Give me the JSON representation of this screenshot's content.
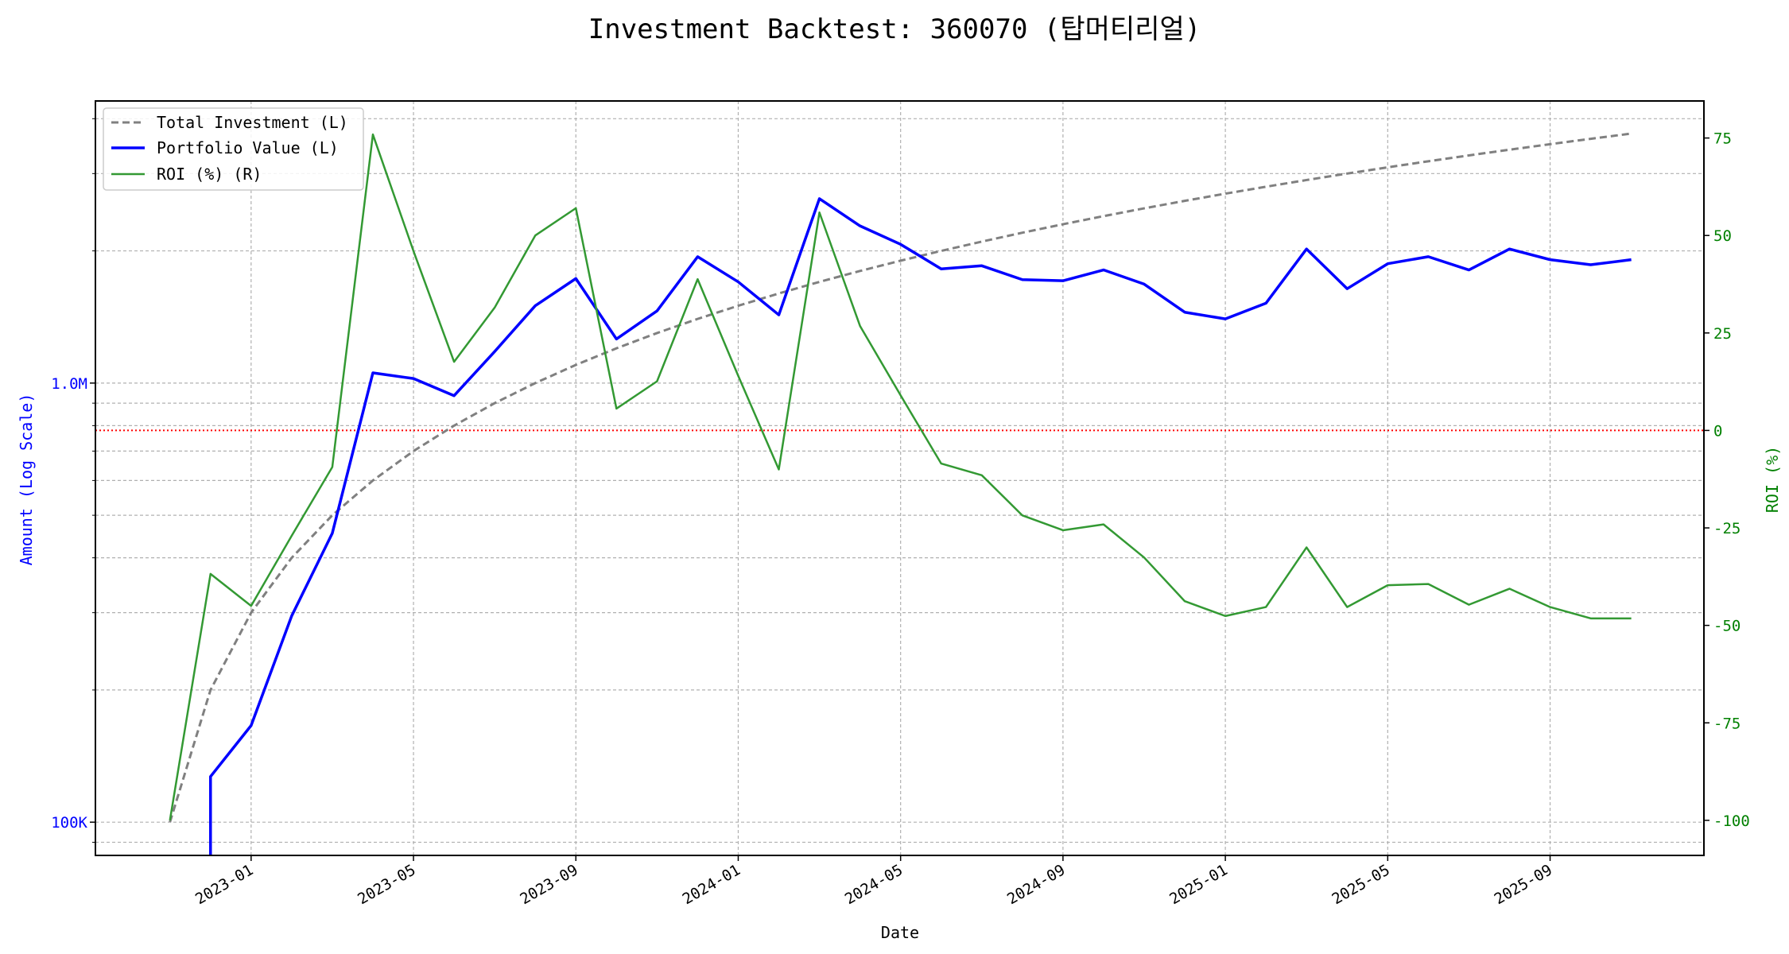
{
  "chart_data": {
    "type": "line",
    "title": "Investment Backtest: 360070 (탑머티리얼)",
    "xlabel": "Date",
    "ylabel_left": "Amount (Log Scale)",
    "ylabel_right": "ROI (%)",
    "left_scale": "log",
    "ylim_left": [
      84000,
      4390000
    ],
    "ylim_right": [
      -109,
      84.5
    ],
    "xlim": [
      "2022-09-06",
      "2025-12-25"
    ],
    "grid": true,
    "legend_position": "top-left",
    "x_ticks": [
      "2023-01",
      "2023-05",
      "2023-09",
      "2024-01",
      "2024-05",
      "2024-09",
      "2025-01",
      "2025-05",
      "2025-09"
    ],
    "y_ticks_left": [
      {
        "value": 100000,
        "label": "100K"
      },
      {
        "value": 1000000,
        "label": "1.0M"
      }
    ],
    "y_minor_left": [
      90000,
      200000,
      300000,
      400000,
      500000,
      600000,
      700000,
      800000,
      900000,
      2000000,
      3000000,
      4000000
    ],
    "y_ticks_right": [
      75,
      50,
      25,
      0,
      -25,
      -50,
      -75,
      -100
    ],
    "reference_line": {
      "axis": "right",
      "value": 0,
      "color": "#ff0000"
    },
    "x": [
      "2022-11",
      "2022-12",
      "2023-01",
      "2023-02",
      "2023-03",
      "2023-04",
      "2023-05",
      "2023-06",
      "2023-07",
      "2023-08",
      "2023-09",
      "2023-10",
      "2023-11",
      "2023-12",
      "2024-01",
      "2024-02",
      "2024-03",
      "2024-04",
      "2024-05",
      "2024-06",
      "2024-07",
      "2024-08",
      "2024-09",
      "2024-10",
      "2024-11",
      "2024-12",
      "2025-01",
      "2025-02",
      "2025-03",
      "2025-04",
      "2025-05",
      "2025-06",
      "2025-07",
      "2025-08",
      "2025-09",
      "2025-10",
      "2025-11"
    ],
    "series": [
      {
        "name": "Total Investment (L)",
        "axis": "left",
        "color": "#808080",
        "style": "dashed",
        "values": [
          100000,
          200000,
          300000,
          400000,
          500000,
          600000,
          700000,
          800000,
          900000,
          1000000,
          1100000,
          1200000,
          1300000,
          1400000,
          1500000,
          1600000,
          1700000,
          1800000,
          1900000,
          2000000,
          2100000,
          2200000,
          2300000,
          2400000,
          2500000,
          2600000,
          2700000,
          2800000,
          2900000,
          3000000,
          3100000,
          3200000,
          3300000,
          3400000,
          3500000,
          3600000,
          3700000
        ]
      },
      {
        "name": "Portfolio Value (L)",
        "axis": "left",
        "color": "#0000ff",
        "style": "solid",
        "values": [
          0,
          127000,
          166000,
          295000,
          455000,
          1055000,
          1024000,
          936000,
          1180000,
          1500000,
          1730000,
          1260000,
          1460000,
          1940000,
          1700000,
          1430000,
          2630000,
          2280000,
          2070000,
          1820000,
          1850000,
          1720000,
          1710000,
          1810000,
          1680000,
          1450000,
          1400000,
          1520000,
          2020000,
          1640000,
          1870000,
          1940000,
          1810000,
          2020000,
          1910000,
          1860000,
          1910000
        ]
      },
      {
        "name": "ROI (%) (R)",
        "axis": "right",
        "color": "#339933",
        "style": "solid",
        "values": [
          -100,
          -36.8,
          -45,
          -27,
          -9.4,
          75.9,
          46,
          17.6,
          31.5,
          50,
          57,
          5.6,
          12.6,
          38.8,
          14,
          -10,
          55.9,
          26.8,
          9,
          -8.5,
          -11.5,
          -21.8,
          -25.6,
          -24.1,
          -32.6,
          -43.8,
          -47.6,
          -45.3,
          -30,
          -45.3,
          -39.7,
          -39.4,
          -44.7,
          -40.6,
          -45.3,
          -48.2,
          -48.2
        ]
      }
    ]
  }
}
